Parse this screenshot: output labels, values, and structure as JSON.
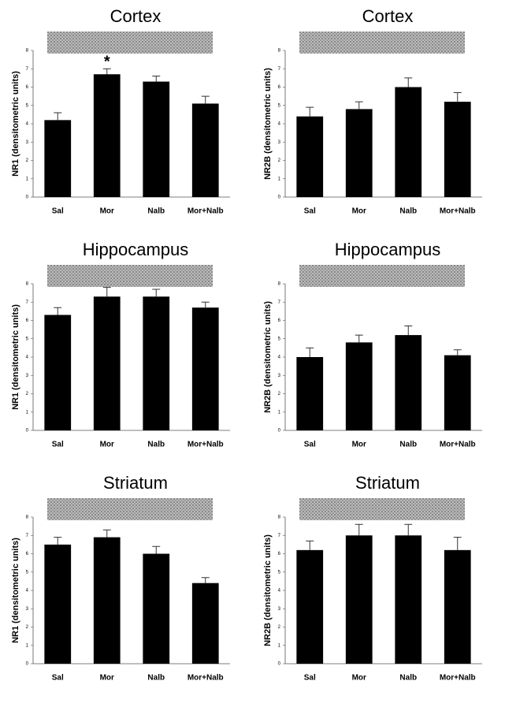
{
  "chart_data": [
    {
      "type": "bar",
      "title": "Cortex",
      "y_label": "NR1 (densitometric units)",
      "categories": [
        "Sal",
        "Mor",
        "Nalb",
        "Mor+Nalb"
      ],
      "values": [
        4.2,
        6.7,
        6.3,
        5.1
      ],
      "errors": [
        0.4,
        0.3,
        0.3,
        0.4
      ],
      "color": "#000000",
      "ylim": [
        0,
        8
      ],
      "yticks": [
        0,
        1,
        2,
        3,
        4,
        5,
        6,
        7,
        8
      ],
      "annotations": [
        {
          "text": "*",
          "category": "Mor"
        }
      ]
    },
    {
      "type": "bar",
      "title": "Cortex",
      "y_label": "NR2B (densitometric units)",
      "categories": [
        "Sal",
        "Mor",
        "Nalb",
        "Mor+Nalb"
      ],
      "values": [
        4.4,
        4.8,
        6.0,
        5.2
      ],
      "errors": [
        0.5,
        0.4,
        0.5,
        0.5
      ],
      "color": "#000000",
      "ylim": [
        0,
        8
      ],
      "yticks": [
        0,
        1,
        2,
        3,
        4,
        5,
        6,
        7,
        8
      ]
    },
    {
      "type": "bar",
      "title": "Hippocampus",
      "y_label": "NR1 (densitometric units)",
      "categories": [
        "Sal",
        "Mor",
        "Nalb",
        "Mor+Nalb"
      ],
      "values": [
        6.3,
        7.3,
        7.3,
        6.7
      ],
      "errors": [
        0.4,
        0.5,
        0.4,
        0.3
      ],
      "color": "#000000",
      "ylim": [
        0,
        8
      ],
      "yticks": [
        0,
        1,
        2,
        3,
        4,
        5,
        6,
        7,
        8
      ]
    },
    {
      "type": "bar",
      "title": "Hippocampus",
      "y_label": "NR2B (densitometric units)",
      "categories": [
        "Sal",
        "Mor",
        "Nalb",
        "Mor+Nalb"
      ],
      "values": [
        4.0,
        4.8,
        5.2,
        4.1
      ],
      "errors": [
        0.5,
        0.4,
        0.5,
        0.3
      ],
      "color": "#000000",
      "ylim": [
        0,
        8
      ],
      "yticks": [
        0,
        1,
        2,
        3,
        4,
        5,
        6,
        7,
        8
      ]
    },
    {
      "type": "bar",
      "title": "Striatum",
      "y_label": "NR1 (densitometric units)",
      "categories": [
        "Sal",
        "Mor",
        "Nalb",
        "Mor+Nalb"
      ],
      "values": [
        6.5,
        6.9,
        6.0,
        4.4
      ],
      "errors": [
        0.4,
        0.4,
        0.4,
        0.3
      ],
      "color": "#000000",
      "ylim": [
        0,
        8
      ],
      "yticks": [
        0,
        1,
        2,
        3,
        4,
        5,
        6,
        7,
        8
      ]
    },
    {
      "type": "bar",
      "title": "Striatum",
      "y_label": "NR2B (densitometric units)",
      "categories": [
        "Sal",
        "Mor",
        "Nalb",
        "Mor+Nalb"
      ],
      "values": [
        6.2,
        7.0,
        7.0,
        6.2
      ],
      "errors": [
        0.5,
        0.6,
        0.6,
        0.7
      ],
      "color": "#000000",
      "ylim": [
        0,
        8
      ],
      "yticks": [
        0,
        1,
        2,
        3,
        4,
        5,
        6,
        7,
        8
      ]
    }
  ]
}
